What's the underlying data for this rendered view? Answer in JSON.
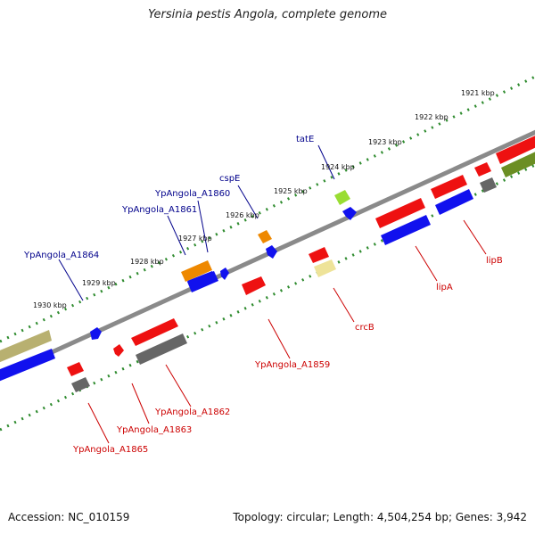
{
  "title": "Yersinia pestis Angola, complete genome",
  "footer": {
    "accession": "Accession: NC_010159",
    "topology": "Topology: circular; Length: 4,504,254 bp; Genes: 3,942"
  },
  "kbp_labels": [
    "1921 kbp",
    "1922 kbp",
    "1923 kbp",
    "1924 kbp",
    "1925 kbp",
    "1926 kbp",
    "1927 kbp",
    "1928 kbp",
    "1929 kbp",
    "1930 kbp"
  ],
  "gene_labels_forward": [
    "tatE",
    "cspE",
    "YpAngola_A1860",
    "YpAngola_A1861",
    "YpAngola_A1864"
  ],
  "gene_labels_reverse": [
    "lipB",
    "lipA",
    "crcB",
    "YpAngola_A1859",
    "YpAngola_A1862",
    "YpAngola_A1863",
    "YpAngola_A1865"
  ],
  "colors": {
    "backbone": "#8a8a8a",
    "ruler_dots": "#2e8b2e",
    "forward_label": "#00008b",
    "reverse_label": "#cc0000",
    "red": "#ee1111",
    "blue": "#1111ee",
    "gray": "#666666",
    "orange": "#ee8800",
    "lime": "#99dd33",
    "khaki": "#b8b070",
    "olive": "#6b8e23",
    "pale_yellow": "#eee399"
  }
}
